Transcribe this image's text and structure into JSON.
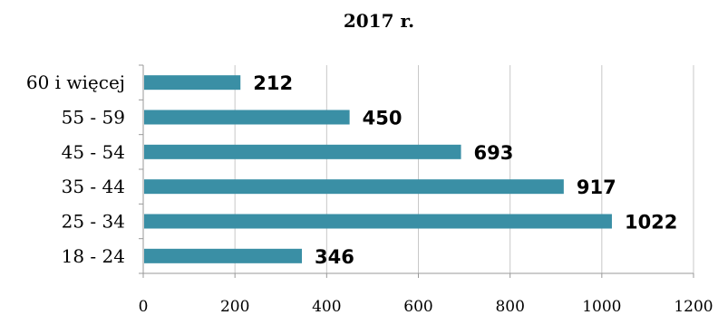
{
  "chart_data": {
    "type": "bar",
    "orientation": "horizontal",
    "title": "2017 r.",
    "categories": [
      "60 i więcej",
      "55 - 59",
      "45 - 54",
      "35 - 44",
      "25 - 34",
      "18 - 24"
    ],
    "values": [
      212,
      450,
      693,
      917,
      1022,
      346
    ],
    "data_labels": [
      "212",
      "450",
      "693",
      "917",
      "1022",
      "346"
    ],
    "xlabel": "",
    "ylabel": "",
    "xlim": [
      0,
      1200
    ],
    "x_ticks": [
      "0",
      "200",
      "400",
      "600",
      "800",
      "1000",
      "1200"
    ],
    "grid": "vertical",
    "legend": "none",
    "colors": {
      "bar": "#3a8fa5",
      "grid": "#c8c8c8",
      "axis": "#999999"
    }
  }
}
